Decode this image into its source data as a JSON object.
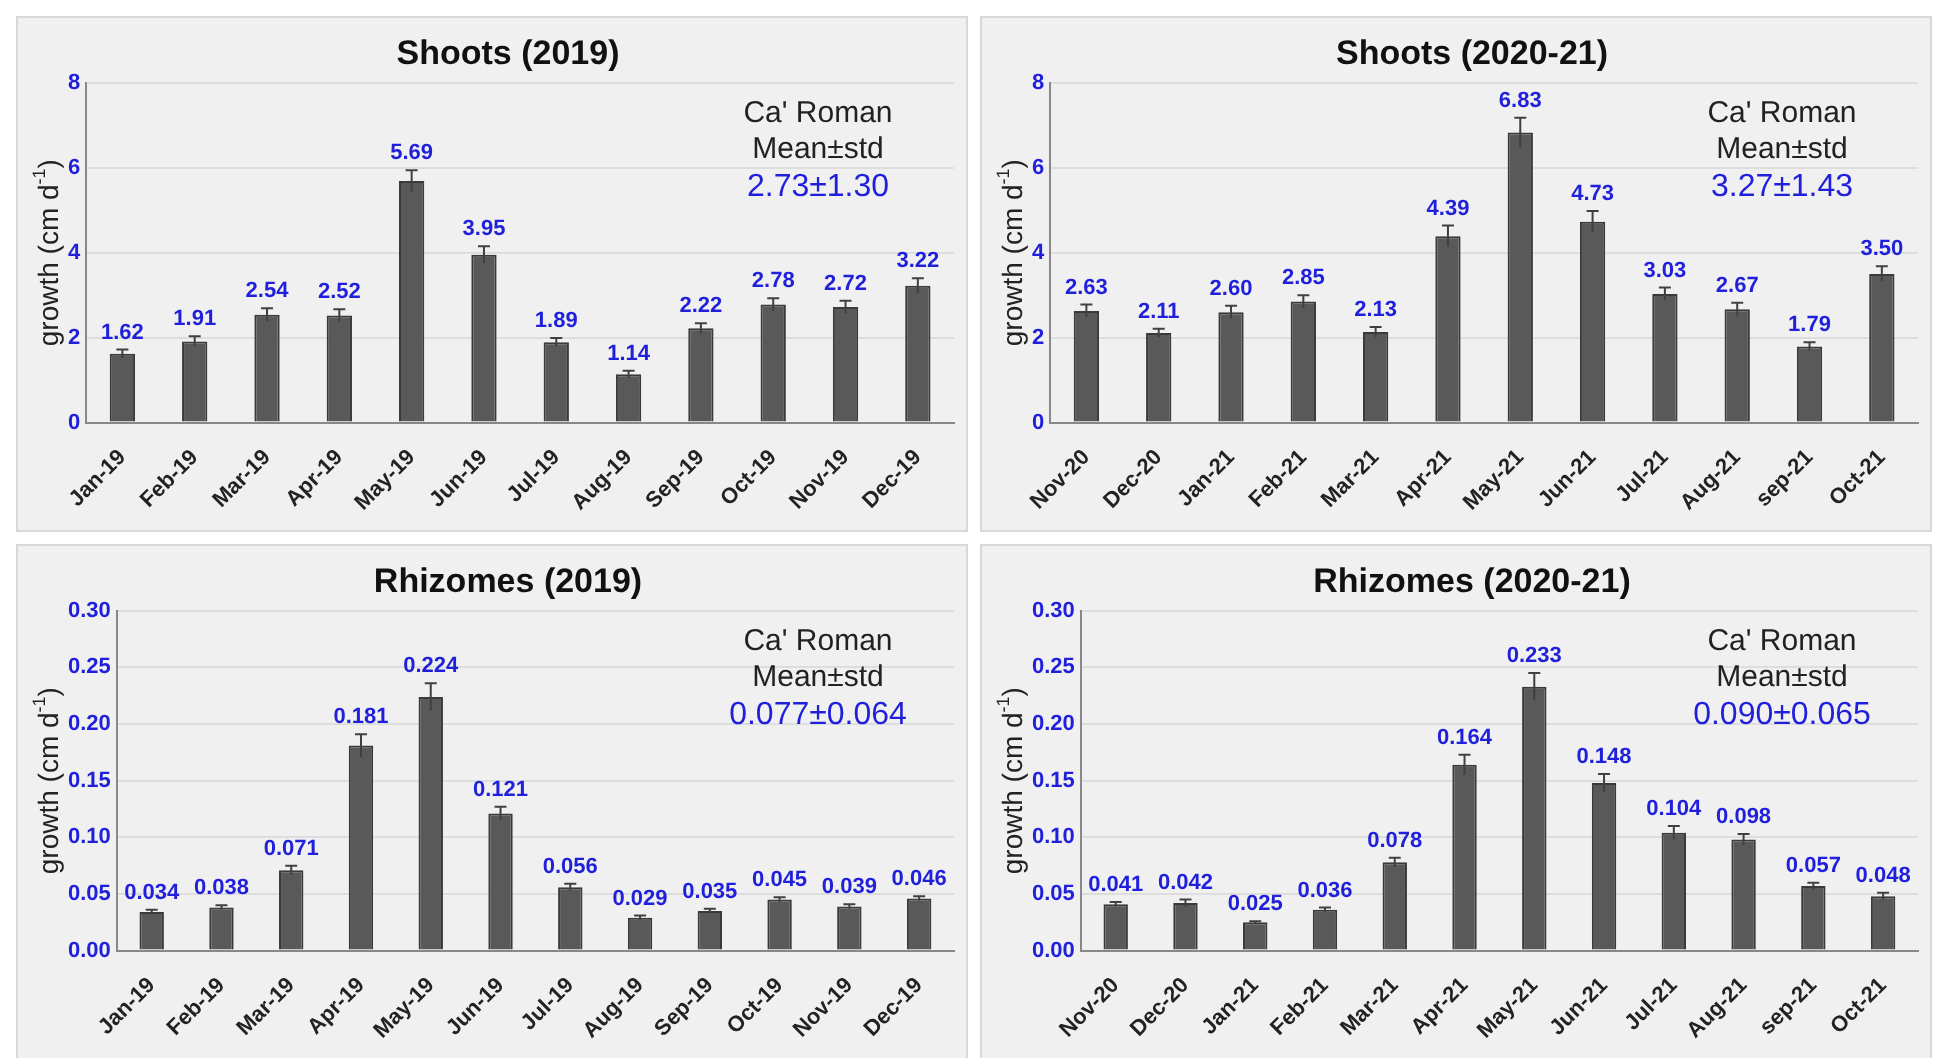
{
  "chart_data": [
    {
      "type": "bar",
      "title": "Shoots (2019)",
      "ylabel": "growth (cm d$^{-1}$)",
      "categories": [
        "Jan-19",
        "Feb-19",
        "Mar-19",
        "Apr-19",
        "May-19",
        "Jun-19",
        "Jul-19",
        "Aug-19",
        "Sep-19",
        "Oct-19",
        "Nov-19",
        "Dec-19"
      ],
      "values": [
        1.62,
        1.91,
        2.54,
        2.52,
        5.69,
        3.95,
        1.89,
        1.14,
        2.22,
        2.78,
        2.72,
        3.22
      ],
      "errors": [
        0.1,
        0.12,
        0.15,
        0.15,
        0.25,
        0.2,
        0.1,
        0.08,
        0.12,
        0.15,
        0.15,
        0.18
      ],
      "value_labels": [
        "1.62",
        "1.91",
        "2.54",
        "2.52",
        "5.69",
        "3.95",
        "1.89",
        "1.14",
        "2.22",
        "2.78",
        "2.72",
        "3.22"
      ],
      "color": "#595959",
      "ylim": [
        0,
        8
      ],
      "yticks": [
        0,
        2,
        4,
        6,
        8
      ],
      "grid": "y",
      "annotations": [
        "Ca' Roman",
        "Mean±std",
        "2.73±1.30"
      ]
    },
    {
      "type": "bar",
      "title": "Shoots (2020-21)",
      "ylabel": "growth (cm d$^{-1}$)",
      "categories": [
        "Nov-20",
        "Dec-20",
        "Jan-21",
        "Feb-21",
        "Mar-21",
        "Apr-21",
        "May-21",
        "Jun-21",
        "Jul-21",
        "Aug-21",
        "sep-21",
        "Oct-21"
      ],
      "values": [
        2.63,
        2.11,
        2.6,
        2.85,
        2.13,
        4.39,
        6.83,
        4.73,
        3.03,
        2.67,
        1.79,
        3.5
      ],
      "errors": [
        0.15,
        0.1,
        0.15,
        0.15,
        0.12,
        0.25,
        0.35,
        0.25,
        0.15,
        0.15,
        0.1,
        0.18
      ],
      "value_labels": [
        "2.63",
        "2.11",
        "2.60",
        "2.85",
        "2.13",
        "4.39",
        "6.83",
        "4.73",
        "3.03",
        "2.67",
        "1.79",
        "3.50"
      ],
      "color": "#595959",
      "ylim": [
        0,
        8
      ],
      "yticks": [
        0,
        2,
        4,
        6,
        8
      ],
      "grid": "y",
      "annotations": [
        "Ca' Roman",
        "Mean±std",
        "3.27±1.43"
      ]
    },
    {
      "type": "bar",
      "title": "Rhizomes (2019)",
      "ylabel": "growth (cm d$^{-1}$)",
      "categories": [
        "Jan-19",
        "Feb-19",
        "Mar-19",
        "Apr-19",
        "May-19",
        "Jun-19",
        "Jul-19",
        "Aug-19",
        "Sep-19",
        "Oct-19",
        "Nov-19",
        "Dec-19"
      ],
      "values": [
        0.034,
        0.038,
        0.071,
        0.181,
        0.224,
        0.121,
        0.056,
        0.029,
        0.035,
        0.045,
        0.039,
        0.046
      ],
      "errors": [
        0.002,
        0.002,
        0.004,
        0.01,
        0.012,
        0.006,
        0.003,
        0.002,
        0.002,
        0.002,
        0.002,
        0.002
      ],
      "value_labels": [
        "0.034",
        "0.038",
        "0.071",
        "0.181",
        "0.224",
        "0.121",
        "0.056",
        "0.029",
        "0.035",
        "0.045",
        "0.039",
        "0.046"
      ],
      "color": "#595959",
      "ylim": [
        0,
        0.3
      ],
      "yticks": [
        {
          "value": 0,
          "label": "0.00"
        },
        {
          "value": 0.05,
          "label": "0.05"
        },
        {
          "value": 0.1,
          "label": "0.10"
        },
        {
          "value": 0.15,
          "label": "0.15"
        },
        {
          "value": 0.2,
          "label": "0.20"
        },
        {
          "value": 0.25,
          "label": "0.25"
        },
        {
          "value": 0.3,
          "label": "0.30"
        }
      ],
      "grid": "y",
      "annotations": [
        "Ca' Roman",
        "Mean±std",
        "0.077±0.064"
      ]
    },
    {
      "type": "bar",
      "title": "Rhizomes (2020-21)",
      "ylabel": "growth (cm d$^{-1}$)",
      "categories": [
        "Nov-20",
        "Dec-20",
        "Jan-21",
        "Feb-21",
        "Mar-21",
        "Apr-21",
        "May-21",
        "Jun-21",
        "Jul-21",
        "Aug-21",
        "sep-21",
        "Oct-21"
      ],
      "values": [
        0.041,
        0.042,
        0.025,
        0.036,
        0.078,
        0.164,
        0.233,
        0.148,
        0.104,
        0.098,
        0.057,
        0.048
      ],
      "errors": [
        0.002,
        0.003,
        0.001,
        0.002,
        0.004,
        0.009,
        0.012,
        0.008,
        0.006,
        0.005,
        0.003,
        0.003
      ],
      "value_labels": [
        "0.041",
        "0.042",
        "0.025",
        "0.036",
        "0.078",
        "0.164",
        "0.233",
        "0.148",
        "0.104",
        "0.098",
        "0.057",
        "0.048"
      ],
      "color": "#595959",
      "ylim": [
        0,
        0.3
      ],
      "yticks": [
        {
          "value": 0,
          "label": "0.00"
        },
        {
          "value": 0.05,
          "label": "0.05"
        },
        {
          "value": 0.1,
          "label": "0.10"
        },
        {
          "value": 0.15,
          "label": "0.15"
        },
        {
          "value": 0.2,
          "label": "0.20"
        },
        {
          "value": 0.25,
          "label": "0.25"
        },
        {
          "value": 0.3,
          "label": "0.30"
        }
      ],
      "grid": "y",
      "annotations": [
        "Ca' Roman",
        "Mean±std",
        "0.090±0.065"
      ]
    }
  ]
}
